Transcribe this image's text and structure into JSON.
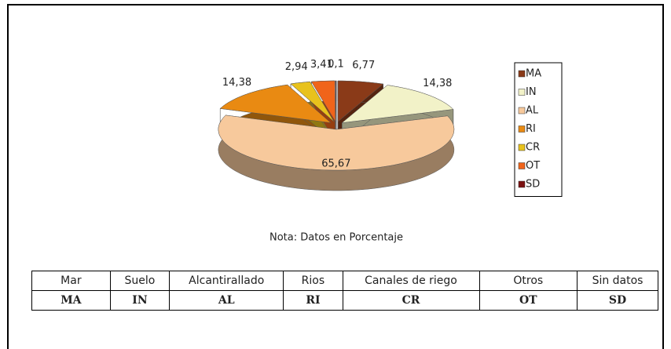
{
  "chart_data": {
    "type": "pie",
    "categories": [
      "MA",
      "IN",
      "AL",
      "RI",
      "CR",
      "OT",
      "SD"
    ],
    "values": [
      6.77,
      14.38,
      65.67,
      14.38,
      2.94,
      3.41,
      0.1
    ],
    "value_labels": [
      "6,77",
      "14,38",
      "65,67",
      "14,38",
      "2,94",
      "3,41",
      "0,1"
    ],
    "colors": [
      "#8a3a18",
      "#f2f2c8",
      "#f7c99c",
      "#e98a12",
      "#e8c21c",
      "#f0641a",
      "#7a1010"
    ],
    "legend": "right",
    "annotation": "Nota: Datos en Porcentaje"
  },
  "table": {
    "header": [
      "Mar",
      "Suelo",
      "Alcantirallado",
      "Rios",
      "Canales de riego",
      "Otros",
      "Sin datos"
    ],
    "codes": [
      "MA",
      "IN",
      "AL",
      "RI",
      "CR",
      "OT",
      "SD"
    ]
  }
}
